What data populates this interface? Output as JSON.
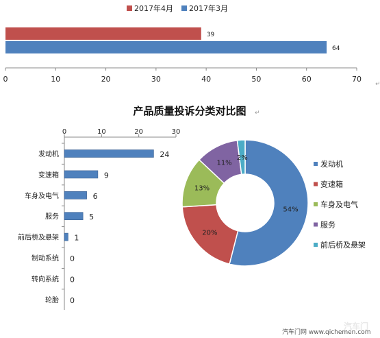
{
  "chart_data": [
    {
      "type": "bar",
      "orientation": "horizontal",
      "series": [
        {
          "name": "2017年4月",
          "color": "#c0504d",
          "value": 39
        },
        {
          "name": "2017年3月",
          "color": "#4f81bd",
          "value": 64
        }
      ],
      "xlim": [
        0,
        70
      ],
      "xticks": [
        "0",
        "10",
        "20",
        "30",
        "40",
        "50",
        "60",
        "70"
      ],
      "legend": "top",
      "grid": false
    },
    {
      "type": "bar",
      "orientation": "horizontal",
      "title": "产品质量投诉分类对比图",
      "categories": [
        "发动机",
        "变速箱",
        "车身及电气",
        "服务",
        "前后桥及悬架",
        "制动系统",
        "转向系统",
        "轮胎"
      ],
      "values": [
        24,
        9,
        6,
        5,
        1,
        0,
        0,
        0
      ],
      "color": "#4f81bd",
      "xlim": [
        0,
        30
      ],
      "xticks": [
        "0",
        "10",
        "20",
        "30"
      ],
      "grid": false
    },
    {
      "type": "pie",
      "donut": true,
      "categories": [
        "发动机",
        "变速箱",
        "车身及电气",
        "服务",
        "前后桥及悬架"
      ],
      "values": [
        54,
        20,
        13,
        11,
        2
      ],
      "labels": [
        "54%",
        "20%",
        "13%",
        "11%",
        "2%"
      ],
      "colors": [
        "#4f81bd",
        "#c0504d",
        "#9bbb59",
        "#8064a2",
        "#4bacc6"
      ],
      "legend": "right"
    }
  ],
  "watermark": {
    "source": "汽车门网 www.qichemen.com",
    "logo": "汽车门"
  }
}
